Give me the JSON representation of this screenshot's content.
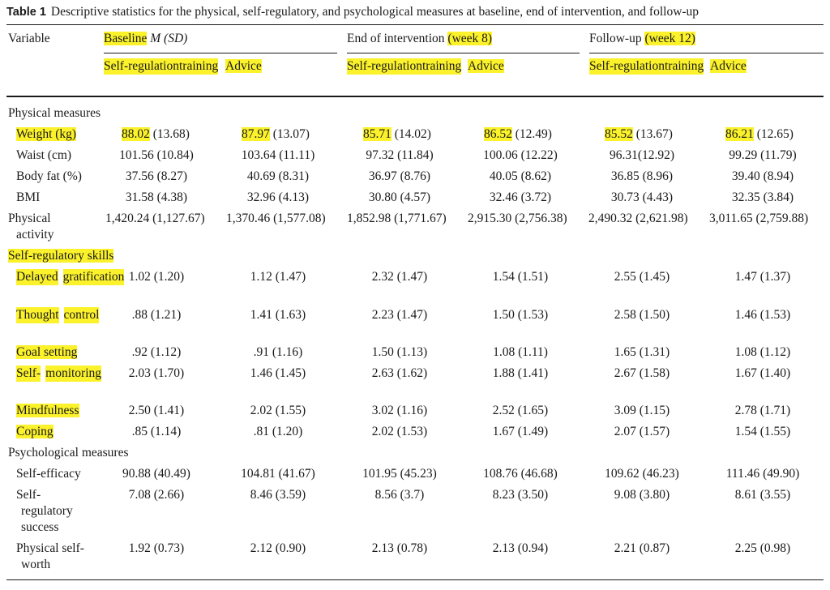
{
  "caption": {
    "label": "Table 1",
    "text": "Descriptive statistics for the physical, self-regulatory, and psychological measures at baseline, end of intervention, and follow-up"
  },
  "header": {
    "variable": "Variable",
    "baseline": {
      "hl": "Baseline",
      "msd": "M (SD)"
    },
    "end": {
      "pre": "End of intervention",
      "hl": "(week 8)"
    },
    "follow": {
      "pre": "Follow-up",
      "hl": "(week 12)"
    },
    "srt_line1": "Self-regulation",
    "srt_line2": "training",
    "advice": "Advice"
  },
  "sections": {
    "physical": "Physical measures",
    "selfreg": "Self-regulatory skills",
    "psych": "Psychological measures"
  },
  "rows": {
    "weight": {
      "label": "Weight (kg)",
      "b1_hl": "88.02",
      "b1_sd": "(13.68)",
      "b2_hl": "87.97",
      "b2_sd": "(13.07)",
      "e1_hl": "85.71",
      "e1_sd": "(14.02)",
      "e2_hl": "86.52",
      "e2_sd": "(12.49)",
      "f1_hl": "85.52",
      "f1_sd": "(13.67)",
      "f2_hl": "86.21",
      "f2_sd": "(12.65)"
    },
    "waist": {
      "label": "Waist (cm)",
      "v": [
        "101.56 (10.84)",
        "103.64 (11.11)",
        "97.32 (11.84)",
        "100.06 (12.22)",
        "96.31(12.92)",
        "99.29 (11.79)"
      ]
    },
    "bodyfat": {
      "label": "Body fat (%)",
      "v": [
        "37.56 (8.27)",
        "40.69 (8.31)",
        "36.97 (8.76)",
        "40.05 (8.62)",
        "36.85 (8.96)",
        "39.40 (8.94)"
      ]
    },
    "bmi": {
      "label": "BMI",
      "v": [
        "31.58 (4.38)",
        "32.96 (4.13)",
        "30.80 (4.57)",
        "32.46 (3.72)",
        "30.73 (4.43)",
        "32.35 (3.84)"
      ]
    },
    "pa": {
      "label1": "Physical",
      "label2": "activity",
      "v": [
        "1,420.24 (1,127.67)",
        "1,370.46 (1,577.08)",
        "1,852.98 (1,771.67)",
        "2,915.30 (2,756.38)",
        "2,490.32 (2,621.98)",
        "3,011.65 (2,759.88)"
      ]
    },
    "delayed": {
      "label1": "Delayed",
      "label2": "gratification",
      "v": [
        "1.02 (1.20)",
        "1.12 (1.47)",
        "2.32 (1.47)",
        "1.54 (1.51)",
        "2.55 (1.45)",
        "1.47 (1.37)"
      ]
    },
    "thought": {
      "label1": "Thought",
      "label2": "control",
      "v": [
        "  .88 (1.21)",
        "1.41 (1.63)",
        "2.23 (1.47)",
        "1.50 (1.53)",
        "2.58 (1.50)",
        "1.46 (1.53)"
      ]
    },
    "goal": {
      "label": "Goal setting",
      "v": [
        ".92 (1.12)",
        ".91 (1.16)",
        "1.50 (1.13)",
        "1.08 (1.11)",
        "1.65 (1.31)",
        "1.08 (1.12)"
      ]
    },
    "selfmon": {
      "label1": "Self-",
      "label2": "monitoring",
      "v": [
        "2.03 (1.70)",
        "1.46 (1.45)",
        "2.63 (1.62)",
        "1.88 (1.41)",
        "2.67 (1.58)",
        "1.67 (1.40)"
      ]
    },
    "mindful": {
      "label": "Mindfulness",
      "v": [
        "2.50 (1.41)",
        "2.02 (1.55)",
        "3.02 (1.16)",
        "2.52 (1.65)",
        "3.09 (1.15)",
        "2.78 (1.71)"
      ]
    },
    "coping": {
      "label": "Coping",
      "v": [
        ".85 (1.14)",
        ".81 (1.20)",
        "2.02 (1.53)",
        "1.67 (1.49)",
        "2.07 (1.57)",
        "1.54 (1.55)"
      ]
    },
    "selfeff": {
      "label": "Self-efficacy",
      "v": [
        "90.88 (40.49)",
        "104.81 (41.67)",
        "101.95 (45.23)",
        "108.76 (46.68)",
        "109.62 (46.23)",
        "111.46 (49.90)"
      ]
    },
    "srsuccess": {
      "label1": "Self-",
      "label2": "regulatory",
      "label3": "success",
      "v": [
        "7.08 (2.66)",
        "8.46 (3.59)",
        "8.56 (3.7)",
        "8.23 (3.50)",
        "9.08 (3.80)",
        "8.61 (3.55)"
      ]
    },
    "psw": {
      "label1": "Physical self-",
      "label2": "worth",
      "v": [
        "1.92 (0.73)",
        "2.12 (0.90)",
        "2.13 (0.78)",
        "2.13 (0.94)",
        "2.21 (0.87)",
        "2.25 (0.98)"
      ]
    }
  }
}
